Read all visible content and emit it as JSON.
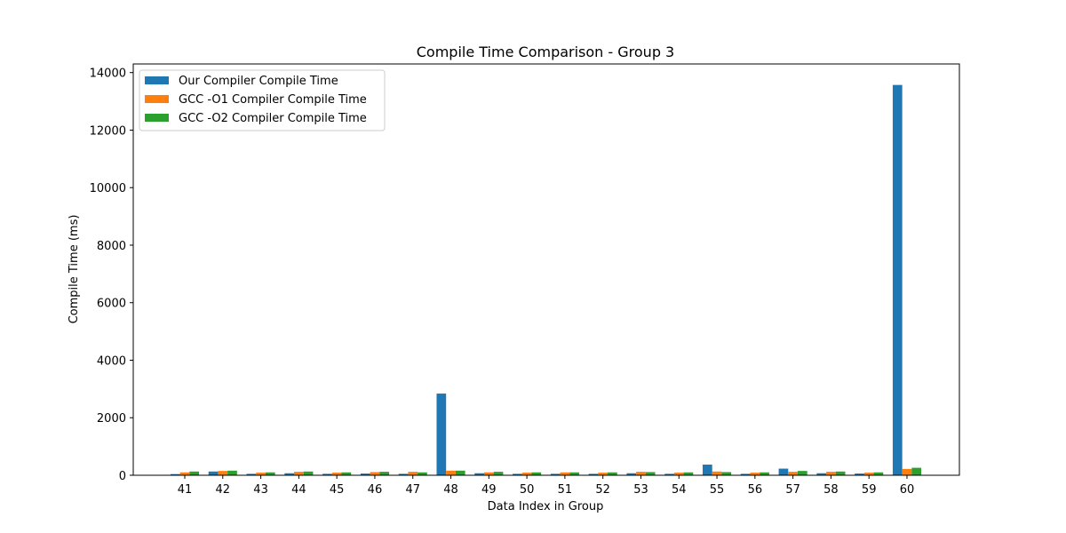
{
  "chart_data": {
    "type": "bar",
    "title": "Compile Time Comparison - Group 3",
    "xlabel": "Data Index in Group",
    "ylabel": "Compile Time (ms)",
    "ylim": [
      0,
      14300
    ],
    "yticks": [
      0,
      2000,
      4000,
      6000,
      8000,
      10000,
      12000,
      14000
    ],
    "categories": [
      "41",
      "42",
      "43",
      "44",
      "45",
      "46",
      "47",
      "48",
      "49",
      "50",
      "51",
      "52",
      "53",
      "54",
      "55",
      "56",
      "57",
      "58",
      "59",
      "60"
    ],
    "series": [
      {
        "name": "Our Compiler Compile Time",
        "color": "#1f77b4",
        "values": [
          40,
          130,
          50,
          70,
          50,
          60,
          50,
          2840,
          70,
          50,
          50,
          50,
          70,
          50,
          370,
          50,
          230,
          70,
          60,
          13570
        ]
      },
      {
        "name": "GCC -O1 Compiler Compile Time",
        "color": "#ff7f0e",
        "values": [
          100,
          150,
          90,
          120,
          90,
          110,
          120,
          160,
          100,
          90,
          100,
          90,
          120,
          90,
          130,
          90,
          120,
          120,
          90,
          220
        ]
      },
      {
        "name": "GCC -O2 Compiler Compile Time",
        "color": "#2ca02c",
        "values": [
          130,
          160,
          100,
          130,
          100,
          120,
          100,
          160,
          120,
          100,
          100,
          100,
          110,
          100,
          110,
          100,
          150,
          130,
          100,
          260
        ]
      }
    ],
    "legend_position": "top-left",
    "grid": false
  }
}
